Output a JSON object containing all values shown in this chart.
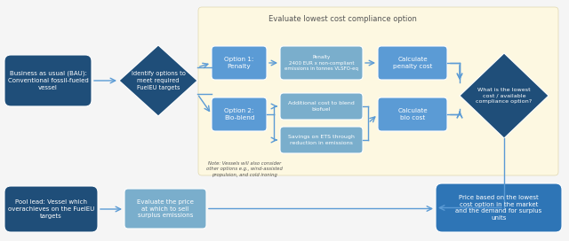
{
  "title_eval": "Evaluate lowest cost compliance option",
  "bg_color": "#f5f5f5",
  "cream_bg": "#fdf8e1",
  "dark_blue": "#1f4e79",
  "mid_blue": "#2e75b6",
  "light_blue": "#5b9bd5",
  "lighter_blue": "#7aaecc",
  "text_white": "#ffffff",
  "text_dark": "#555555",
  "box_bau_text": "Business as usual (BAU):\nConventional fossil-fueled\nvessel",
  "diamond1_text": "Identify options to\nmeet required\nFuelEU targets",
  "option1_text": "Option 1:\nPenalty",
  "option2_text": "Option 2:\nBio-blend",
  "penalty_detail_text": "Penalty\n2400 EUR x non-compliant\nemissions in tonnes VLSFO-eq",
  "add_cost_text": "Additional cost to blend\nbiofuel",
  "savings_text": "Savings on ETS through\nreduction in emissions",
  "calc_penalty_text": "Calculate\npenalty cost",
  "calc_bio_text": "Calculate\nbio cost",
  "diamond2_text": "What is the lowest\ncost / available\ncompliance option?",
  "note_text": "Note: Vessels will also consider\nother options e.g., wind-assisted\npropulsion, and cold ironing",
  "pool_lead_text": "Pool lead: Vessel which\noverachieves on the FuelEU\ntargets",
  "eval_price_text": "Evaluate the price\nat which to sell\nsurplus emissions",
  "price_based_text": "Price based on the lowest\ncost option in the market\nand the demand for surplus\nunits"
}
